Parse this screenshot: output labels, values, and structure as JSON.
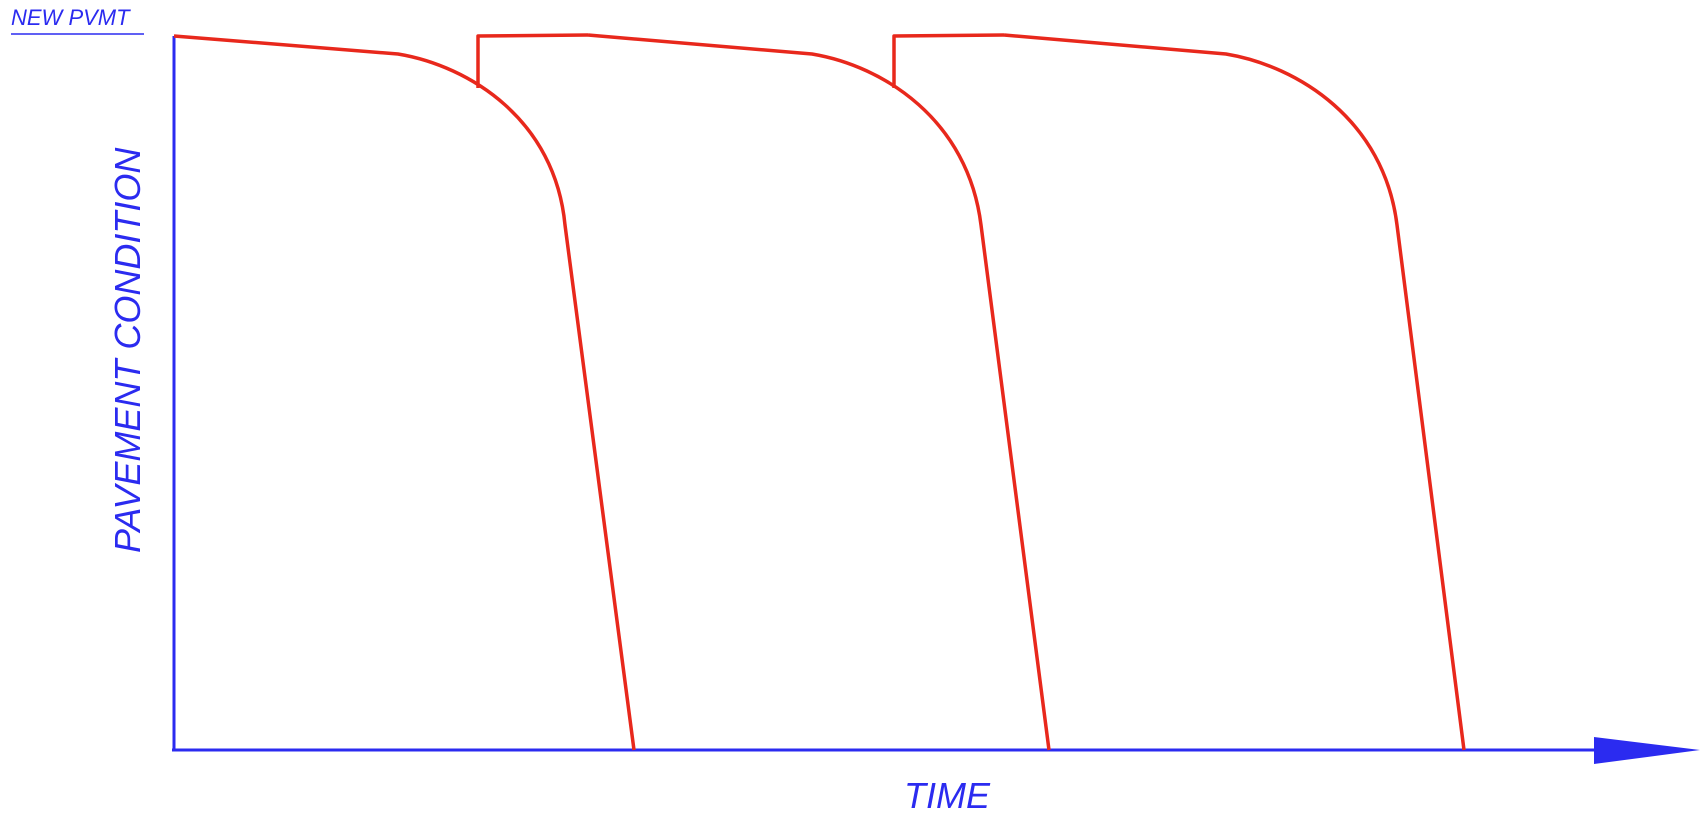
{
  "labels": {
    "top_left": "NEW PVMT",
    "y_axis": "PAVEMENT CONDITION",
    "x_axis": "TIME"
  },
  "colors": {
    "axis": "#2b2bf0",
    "curve": "#e8281c",
    "background": "#ffffff"
  }
}
